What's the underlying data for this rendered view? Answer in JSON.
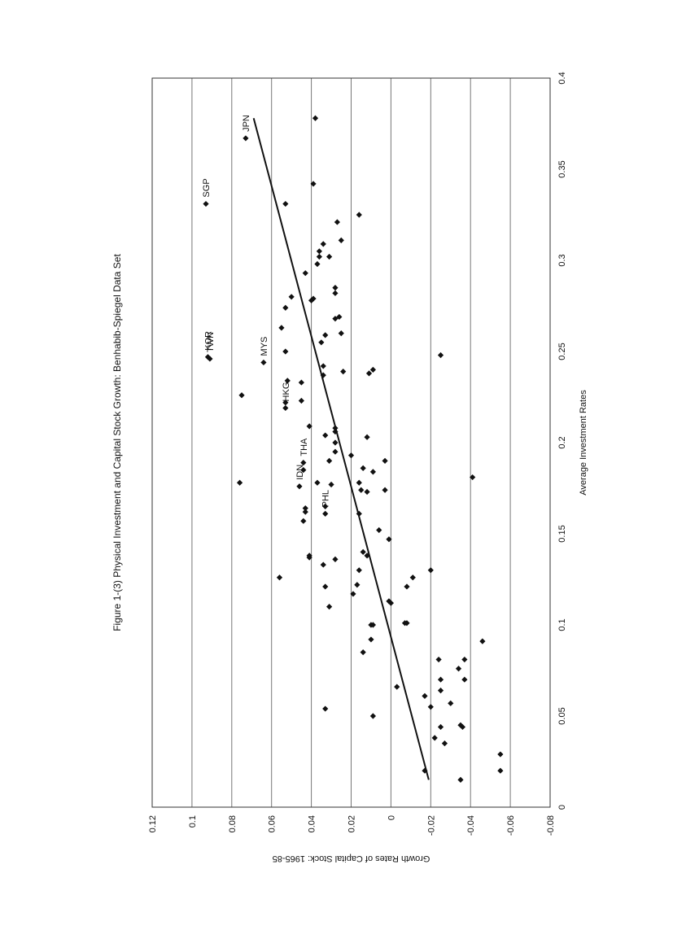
{
  "chart_data": {
    "type": "scatter",
    "title": "Figure 1-(3) Physical Investment and Capital Stock Growth: Benhabib-Spiegel Data Set",
    "xlabel": "Average Investment Rates",
    "ylabel": "Growth Rates of Capital Stock: 1965-85",
    "xlim": [
      0,
      0.4
    ],
    "ylim": [
      -0.08,
      0.12
    ],
    "x_ticks": [
      0,
      0.05,
      0.1,
      0.15,
      0.2,
      0.25,
      0.3,
      0.35,
      0.4
    ],
    "x_tick_labels": [
      "0",
      "0.05",
      "0.1",
      "0.15",
      "0.2",
      "0.25",
      "0.3",
      "0.35",
      "0.4"
    ],
    "y_ticks": [
      -0.08,
      -0.06,
      -0.04,
      -0.02,
      0,
      0.02,
      0.04,
      0.06,
      0.08,
      0.1,
      0.12
    ],
    "y_tick_labels": [
      "-0.08",
      "-0.06",
      "-0.04",
      "-0.02",
      "0",
      "0.02",
      "0.04",
      "0.06",
      "0.08",
      "0.1",
      "0.12"
    ],
    "grid": "horizontal",
    "orientation": "rotated-90-ccw",
    "marker": "diamond",
    "color": "#111111",
    "trend_line": {
      "x": [
        0.015,
        0.378
      ],
      "y": [
        -0.019,
        0.069
      ]
    },
    "labeled_points": [
      {
        "label": "JPN",
        "x": 0.367,
        "y": 0.073
      },
      {
        "label": "SGP",
        "x": 0.331,
        "y": 0.093
      },
      {
        "label": "KOR",
        "x": 0.247,
        "y": 0.092
      },
      {
        "label": "TWN",
        "x": 0.246,
        "y": 0.091
      },
      {
        "label": "MYS",
        "x": 0.244,
        "y": 0.064
      },
      {
        "label": "HKG",
        "x": 0.219,
        "y": 0.053
      },
      {
        "label": "THA",
        "x": 0.189,
        "y": 0.044
      },
      {
        "label": "IDN",
        "x": 0.176,
        "y": 0.046
      },
      {
        "label": "PHL",
        "x": 0.161,
        "y": 0.033
      }
    ],
    "points": [
      {
        "x": 0.378,
        "y": 0.038
      },
      {
        "x": 0.342,
        "y": 0.039
      },
      {
        "x": 0.331,
        "y": 0.053
      },
      {
        "x": 0.325,
        "y": 0.016
      },
      {
        "x": 0.321,
        "y": 0.027
      },
      {
        "x": 0.311,
        "y": 0.025
      },
      {
        "x": 0.309,
        "y": 0.034
      },
      {
        "x": 0.305,
        "y": 0.036
      },
      {
        "x": 0.302,
        "y": 0.031
      },
      {
        "x": 0.302,
        "y": 0.036
      },
      {
        "x": 0.298,
        "y": 0.037
      },
      {
        "x": 0.293,
        "y": 0.043
      },
      {
        "x": 0.285,
        "y": 0.028
      },
      {
        "x": 0.282,
        "y": 0.028
      },
      {
        "x": 0.28,
        "y": 0.05
      },
      {
        "x": 0.279,
        "y": 0.039
      },
      {
        "x": 0.278,
        "y": 0.04
      },
      {
        "x": 0.274,
        "y": 0.053
      },
      {
        "x": 0.269,
        "y": 0.026
      },
      {
        "x": 0.268,
        "y": 0.028
      },
      {
        "x": 0.263,
        "y": 0.055
      },
      {
        "x": 0.26,
        "y": 0.025
      },
      {
        "x": 0.259,
        "y": 0.033
      },
      {
        "x": 0.255,
        "y": 0.035
      },
      {
        "x": 0.25,
        "y": 0.053
      },
      {
        "x": 0.248,
        "y": -0.025
      },
      {
        "x": 0.242,
        "y": 0.034
      },
      {
        "x": 0.24,
        "y": 0.009
      },
      {
        "x": 0.239,
        "y": 0.024
      },
      {
        "x": 0.238,
        "y": 0.011
      },
      {
        "x": 0.237,
        "y": 0.034
      },
      {
        "x": 0.234,
        "y": 0.052
      },
      {
        "x": 0.233,
        "y": 0.045
      },
      {
        "x": 0.226,
        "y": 0.075
      },
      {
        "x": 0.223,
        "y": 0.045
      },
      {
        "x": 0.222,
        "y": 0.053
      },
      {
        "x": 0.209,
        "y": 0.041
      },
      {
        "x": 0.208,
        "y": 0.028
      },
      {
        "x": 0.206,
        "y": 0.028
      },
      {
        "x": 0.204,
        "y": 0.033
      },
      {
        "x": 0.203,
        "y": 0.012
      },
      {
        "x": 0.2,
        "y": 0.028
      },
      {
        "x": 0.195,
        "y": 0.028
      },
      {
        "x": 0.193,
        "y": 0.02
      },
      {
        "x": 0.19,
        "y": 0.031
      },
      {
        "x": 0.19,
        "y": 0.003
      },
      {
        "x": 0.186,
        "y": 0.014
      },
      {
        "x": 0.185,
        "y": 0.044
      },
      {
        "x": 0.184,
        "y": 0.009
      },
      {
        "x": 0.181,
        "y": -0.041
      },
      {
        "x": 0.178,
        "y": 0.076
      },
      {
        "x": 0.178,
        "y": 0.037
      },
      {
        "x": 0.178,
        "y": 0.016
      },
      {
        "x": 0.177,
        "y": 0.03
      },
      {
        "x": 0.174,
        "y": 0.015
      },
      {
        "x": 0.174,
        "y": 0.003
      },
      {
        "x": 0.173,
        "y": 0.012
      },
      {
        "x": 0.165,
        "y": 0.033
      },
      {
        "x": 0.164,
        "y": 0.043
      },
      {
        "x": 0.162,
        "y": 0.043
      },
      {
        "x": 0.161,
        "y": 0.016
      },
      {
        "x": 0.157,
        "y": 0.044
      },
      {
        "x": 0.152,
        "y": 0.006
      },
      {
        "x": 0.147,
        "y": 0.001
      },
      {
        "x": 0.14,
        "y": 0.014
      },
      {
        "x": 0.138,
        "y": 0.012
      },
      {
        "x": 0.138,
        "y": 0.041
      },
      {
        "x": 0.137,
        "y": 0.041
      },
      {
        "x": 0.136,
        "y": 0.028
      },
      {
        "x": 0.133,
        "y": 0.034
      },
      {
        "x": 0.13,
        "y": 0.016
      },
      {
        "x": 0.13,
        "y": -0.02
      },
      {
        "x": 0.126,
        "y": -0.011
      },
      {
        "x": 0.126,
        "y": 0.056
      },
      {
        "x": 0.122,
        "y": 0.017
      },
      {
        "x": 0.121,
        "y": 0.033
      },
      {
        "x": 0.121,
        "y": -0.008
      },
      {
        "x": 0.117,
        "y": 0.019
      },
      {
        "x": 0.113,
        "y": 0.001
      },
      {
        "x": 0.112,
        "y": 0.0
      },
      {
        "x": 0.11,
        "y": 0.031
      },
      {
        "x": 0.101,
        "y": -0.008
      },
      {
        "x": 0.101,
        "y": -0.007
      },
      {
        "x": 0.1,
        "y": 0.01
      },
      {
        "x": 0.1,
        "y": 0.009
      },
      {
        "x": 0.092,
        "y": 0.01
      },
      {
        "x": 0.091,
        "y": -0.046
      },
      {
        "x": 0.085,
        "y": 0.014
      },
      {
        "x": 0.081,
        "y": -0.024
      },
      {
        "x": 0.081,
        "y": -0.037
      },
      {
        "x": 0.076,
        "y": -0.034
      },
      {
        "x": 0.07,
        "y": -0.025
      },
      {
        "x": 0.07,
        "y": -0.037
      },
      {
        "x": 0.066,
        "y": -0.003
      },
      {
        "x": 0.064,
        "y": -0.025
      },
      {
        "x": 0.061,
        "y": -0.017
      },
      {
        "x": 0.057,
        "y": -0.03
      },
      {
        "x": 0.055,
        "y": -0.02
      },
      {
        "x": 0.054,
        "y": 0.033
      },
      {
        "x": 0.05,
        "y": 0.009
      },
      {
        "x": 0.045,
        "y": -0.035
      },
      {
        "x": 0.044,
        "y": -0.036
      },
      {
        "x": 0.044,
        "y": -0.025
      },
      {
        "x": 0.038,
        "y": -0.022
      },
      {
        "x": 0.035,
        "y": -0.027
      },
      {
        "x": 0.029,
        "y": -0.055
      },
      {
        "x": 0.02,
        "y": -0.055
      },
      {
        "x": 0.02,
        "y": -0.017
      },
      {
        "x": 0.015,
        "y": -0.035
      }
    ]
  }
}
